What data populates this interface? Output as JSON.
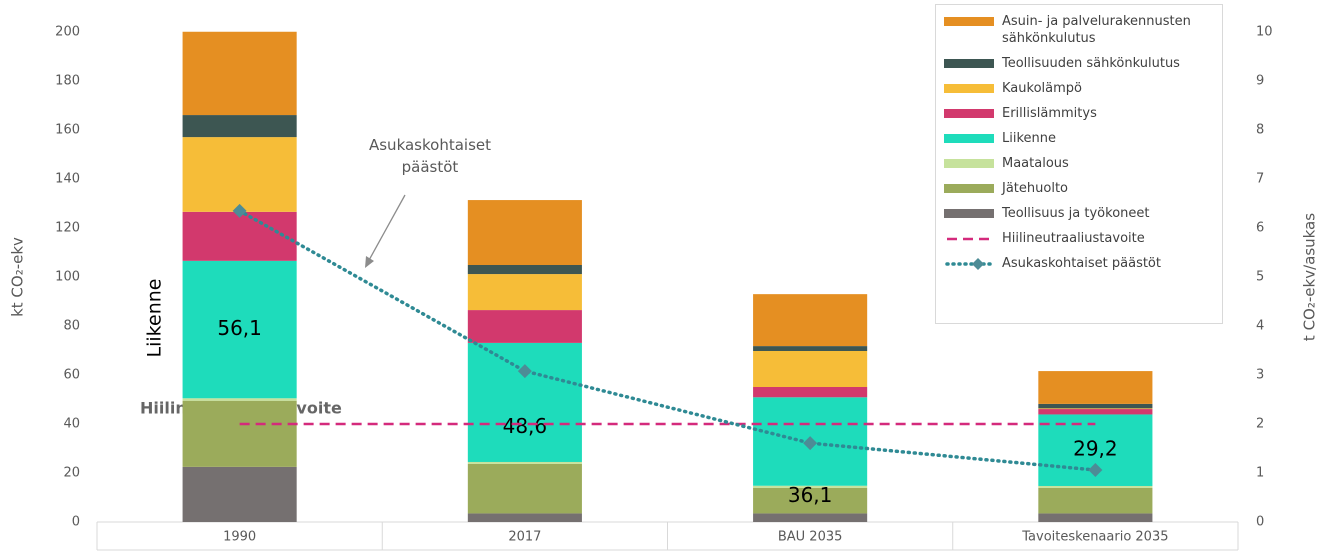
{
  "chart_data": {
    "type": "bar",
    "stacked": true,
    "y_label": "kt CO₂-ekv",
    "y2_label": "t CO₂-ekv/asukas",
    "categories": [
      "1990",
      "2017",
      "BAU 2035",
      "Tavoiteskenaario 2035"
    ],
    "series": [
      {
        "name": "Teollisuus ja työkoneet",
        "color": "#757070",
        "values": [
          22.5,
          3.5,
          3.5,
          3.5
        ]
      },
      {
        "name": "Jätehuolto",
        "color": "#9bab5b",
        "values": [
          27,
          20.2,
          10.4,
          10.4
        ]
      },
      {
        "name": "Maatalous",
        "color": "#c6e29c",
        "values": [
          1,
          0.8,
          0.9,
          0.8
        ]
      },
      {
        "name": "Liikenne",
        "color": "#1edcbb",
        "values": [
          56.1,
          48.6,
          36.1,
          29.2
        ],
        "value_labels": [
          "56,1",
          "48,6",
          "36,1",
          "29,2"
        ]
      },
      {
        "name": "Erillislämmitys",
        "color": "#d2396d",
        "values": [
          20,
          13.4,
          4.2,
          2.2
        ]
      },
      {
        "name": "Kaukolämpö",
        "color": "#f6bd38",
        "values": [
          30.5,
          14.7,
          14.7,
          0.3
        ]
      },
      {
        "name": "Teollisuuden sähkönkulutus",
        "color": "#3d5652",
        "values": [
          9,
          3.7,
          2,
          1.8
        ]
      },
      {
        "name": "Asuin- ja palvelurakennusten sähkönkulutus",
        "color": "#e58f22",
        "values": [
          34,
          26.5,
          21.2,
          13.4
        ]
      },
      {
        "name": "Hiilineutraaliustavoite",
        "type": "line",
        "style": "dashed",
        "color": "#d42a7c",
        "values": [
          40,
          40,
          40,
          40
        ]
      },
      {
        "name": "Asukaskohtaiset päästöt",
        "type": "line",
        "style": "dotted",
        "marker": "diamond",
        "axis": "y2",
        "color": "#2f8a94",
        "values": [
          6.35,
          3.08,
          1.61,
          1.06
        ]
      }
    ],
    "ylim": [
      0,
      200
    ],
    "yticks": [
      0,
      20,
      40,
      60,
      80,
      100,
      120,
      140,
      160,
      180,
      200
    ],
    "y2lim": [
      0,
      10
    ],
    "y2ticks": [
      0,
      1,
      2,
      3,
      4,
      5,
      6,
      7,
      8,
      9,
      10
    ],
    "grid": false,
    "legend": "upper right",
    "annotations": [
      "Asukaskohtaiset päästöt",
      "Liikenne",
      "Hiilineutraaliustavoite"
    ]
  }
}
